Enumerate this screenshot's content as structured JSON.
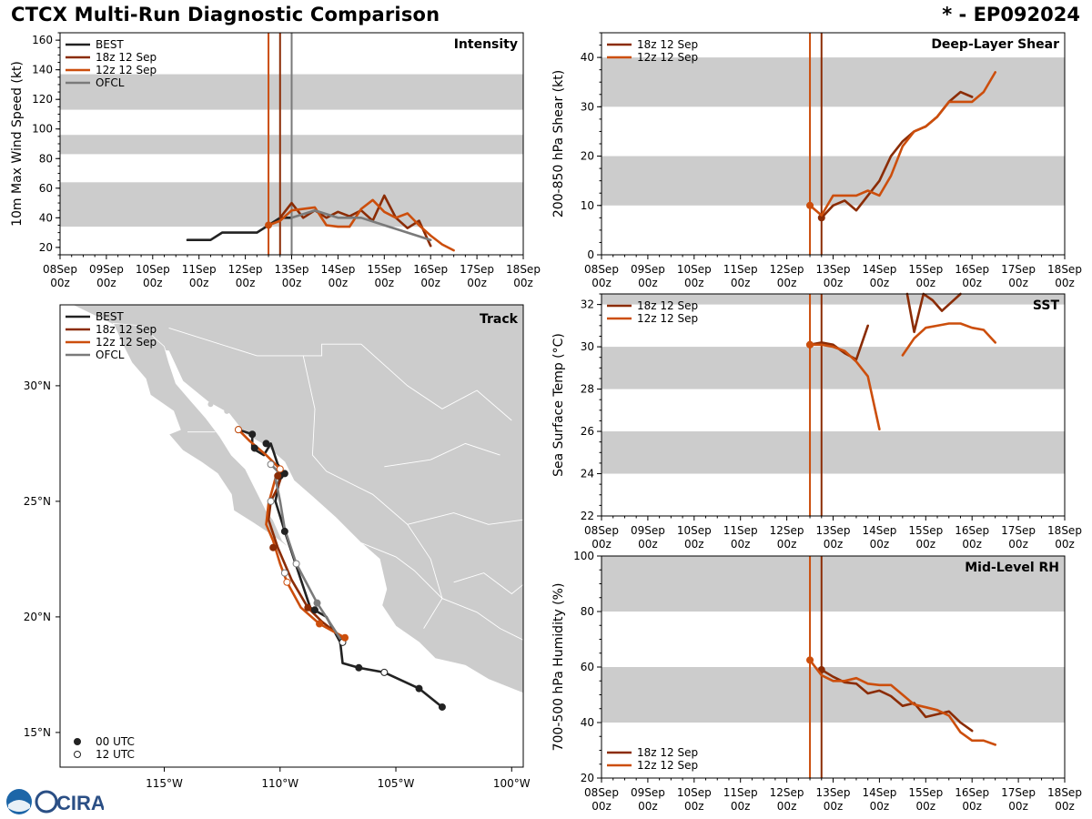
{
  "header": {
    "title_left": "CTCX Multi-Run Diagnostic Comparison",
    "title_right": "* - EP092024"
  },
  "logos": {
    "cira": "CIRA"
  },
  "colors": {
    "best": "#222222",
    "run18": "#8b2c05",
    "run12": "#cc4e0c",
    "ofcl": "#7a7a7a",
    "band": "#cccccc"
  },
  "time_axis": {
    "top": [
      "08Sep",
      "09Sep",
      "10Sep",
      "11Sep",
      "12Sep",
      "13Sep",
      "14Sep",
      "15Sep",
      "16Sep",
      "17Sep",
      "18Sep"
    ],
    "bottom": "00z"
  },
  "chart_data": [
    {
      "id": "intensity",
      "type": "line",
      "title": "Intensity",
      "ylabel": "10m Max Wind Speed (kt)",
      "xlim": [
        0,
        10
      ],
      "ylim": [
        15,
        165
      ],
      "yticks": [
        20,
        40,
        60,
        80,
        100,
        120,
        140,
        160
      ],
      "bands": [
        [
          34,
          64
        ],
        [
          83,
          96
        ],
        [
          113,
          137
        ]
      ],
      "vlines": [
        {
          "x": 4.5,
          "series": "run12"
        },
        {
          "x": 4.75,
          "series": "run18"
        },
        {
          "x": 5.0,
          "series": "ofcl"
        }
      ],
      "legend": [
        "BEST",
        "18z 12 Sep",
        "12z 12 Sep",
        "OFCL"
      ],
      "series": [
        {
          "key": "best",
          "name": "BEST",
          "x": [
            2.75,
            3.0,
            3.25,
            3.5,
            3.75,
            4.0,
            4.25,
            4.5,
            4.75,
            5.0
          ],
          "y": [
            25,
            25,
            25,
            30,
            30,
            30,
            30,
            35,
            40,
            40
          ]
        },
        {
          "key": "run18",
          "name": "18z 12 Sep",
          "x": [
            4.75,
            5.0,
            5.25,
            5.5,
            5.75,
            6.0,
            6.25,
            6.5,
            6.75,
            7.0,
            7.25,
            7.5,
            7.75,
            8.0
          ],
          "y": [
            40,
            50,
            40,
            45,
            40,
            44,
            41,
            45,
            38,
            55,
            40,
            33,
            38,
            21
          ]
        },
        {
          "key": "run12",
          "name": "12z 12 Sep",
          "x": [
            4.5,
            4.75,
            5.0,
            5.25,
            5.5,
            5.75,
            6.0,
            6.25,
            6.5,
            6.75,
            7.0,
            7.25,
            7.5,
            7.75,
            8.0,
            8.25,
            8.5
          ],
          "y": [
            35,
            38,
            45,
            46,
            47,
            35,
            34,
            34,
            46,
            52,
            44,
            40,
            43,
            35,
            28,
            22,
            18
          ]
        },
        {
          "key": "ofcl",
          "name": "OFCL",
          "x": [
            5.0,
            5.5,
            6.0,
            6.5,
            7.0,
            7.5,
            8.0
          ],
          "y": [
            40,
            45,
            40,
            40,
            35,
            30,
            25
          ]
        }
      ]
    },
    {
      "id": "shear",
      "type": "line",
      "title": "Deep-Layer Shear",
      "ylabel": "200-850 hPa Shear (kt)",
      "xlim": [
        0,
        10
      ],
      "ylim": [
        0,
        45
      ],
      "yticks": [
        0,
        10,
        20,
        30,
        40
      ],
      "bands": [
        [
          10,
          20
        ],
        [
          30,
          40
        ]
      ],
      "vlines": [
        {
          "x": 4.5,
          "series": "run12"
        },
        {
          "x": 4.75,
          "series": "run18"
        }
      ],
      "legend": [
        "18z 12 Sep",
        "12z 12 Sep"
      ],
      "series": [
        {
          "key": "run18",
          "name": "18z 12 Sep",
          "x": [
            4.75,
            5.0,
            5.25,
            5.5,
            5.75,
            6.0,
            6.25,
            6.5,
            6.75,
            7.0,
            7.25,
            7.5,
            7.75,
            8.0
          ],
          "y": [
            7.5,
            10,
            11,
            9,
            12,
            15,
            20,
            23,
            25,
            26,
            28,
            31,
            33,
            32
          ]
        },
        {
          "key": "run12",
          "name": "12z 12 Sep",
          "x": [
            4.5,
            4.75,
            5.0,
            5.25,
            5.5,
            5.75,
            6.0,
            6.25,
            6.5,
            6.75,
            7.0,
            7.25,
            7.5,
            7.75,
            8.0,
            8.25,
            8.5
          ],
          "y": [
            10,
            8,
            12,
            12,
            12,
            13,
            12,
            16,
            22,
            25,
            26,
            28,
            31,
            31,
            31,
            33,
            37
          ]
        }
      ]
    },
    {
      "id": "sst",
      "type": "line",
      "title": "SST",
      "ylabel": "Sea Surface Temp (°C)",
      "xlim": [
        0,
        10
      ],
      "ylim": [
        22,
        32.5
      ],
      "yticks": [
        22,
        24,
        26,
        28,
        30,
        32
      ],
      "bands": [
        [
          24,
          26
        ],
        [
          28,
          30
        ],
        [
          32,
          32.5
        ]
      ],
      "vlines": [
        {
          "x": 4.5,
          "series": "run12"
        },
        {
          "x": 4.75,
          "series": "run18"
        }
      ],
      "legend": [
        "18z 12 Sep",
        "12z 12 Sep"
      ],
      "series": [
        {
          "key": "run18",
          "name": "18z 12 Sep",
          "segments": [
            {
              "x": [
                4.5,
                4.75,
                5.0,
                5.25,
                5.5,
                5.75
              ],
              "y": [
                30.1,
                30.2,
                30.1,
                29.7,
                29.4,
                31.0
              ]
            },
            {
              "x": [
                6.6,
                6.75,
                6.95,
                7.15,
                7.35,
                7.55,
                7.75
              ],
              "y": [
                32.5,
                30.7,
                32.5,
                32.2,
                31.7,
                32.1,
                32.5
              ]
            }
          ]
        },
        {
          "key": "run12",
          "name": "12z 12 Sep",
          "segments": [
            {
              "x": [
                4.5,
                4.75,
                5.0,
                5.25,
                5.5,
                5.75,
                6.0
              ],
              "y": [
                30.1,
                30.1,
                30.0,
                29.8,
                29.3,
                28.6,
                26.1
              ]
            },
            {
              "x": [
                6.5,
                6.75,
                7.0,
                7.25,
                7.5,
                7.75,
                8.0,
                8.25,
                8.5
              ],
              "y": [
                29.6,
                30.4,
                30.9,
                31.0,
                31.1,
                31.1,
                30.9,
                30.8,
                30.2
              ]
            }
          ]
        }
      ]
    },
    {
      "id": "rh",
      "type": "line",
      "title": "Mid-Level RH",
      "ylabel": "700-500 hPa Humidity (%)",
      "xlim": [
        0,
        10
      ],
      "ylim": [
        20,
        100
      ],
      "yticks": [
        20,
        40,
        60,
        80,
        100
      ],
      "bands": [
        [
          40,
          60
        ],
        [
          80,
          100
        ]
      ],
      "vlines": [
        {
          "x": 4.5,
          "series": "run12"
        },
        {
          "x": 4.75,
          "series": "run18"
        }
      ],
      "legend": [
        "18z 12 Sep",
        "12z 12 Sep"
      ],
      "series": [
        {
          "key": "run18",
          "name": "18z 12 Sep",
          "x": [
            4.75,
            5.0,
            5.25,
            5.5,
            5.75,
            6.0,
            6.25,
            6.5,
            6.75,
            7.0,
            7.25,
            7.5,
            7.75,
            8.0
          ],
          "y": [
            59,
            56.5,
            54.5,
            54,
            50.5,
            51.5,
            49.5,
            46,
            47,
            42,
            43,
            44,
            40,
            37
          ]
        },
        {
          "key": "run12",
          "name": "12z 12 Sep",
          "x": [
            4.5,
            4.75,
            5.0,
            5.25,
            5.5,
            5.75,
            6.0,
            6.25,
            6.5,
            6.75,
            7.0,
            7.25,
            7.5,
            7.75,
            8.0,
            8.25,
            8.5
          ],
          "y": [
            62.5,
            57,
            55,
            55,
            56,
            54,
            53.5,
            53.5,
            50,
            46.5,
            45.5,
            44.5,
            42.5,
            36.5,
            33.5,
            33.5,
            32
          ]
        }
      ]
    },
    {
      "id": "track",
      "type": "scatter",
      "title": "Track",
      "xlim": [
        -119.5,
        -99.5
      ],
      "ylim": [
        13.5,
        33.5
      ],
      "xticks": [
        -115,
        -110,
        -105,
        -100
      ],
      "xtick_labels": [
        "115°W",
        "110°W",
        "105°W",
        "100°W"
      ],
      "yticks": [
        15,
        20,
        25,
        30
      ],
      "ytick_labels": [
        "15°N",
        "20°N",
        "25°N",
        "30°N"
      ],
      "legend": [
        "BEST",
        "18z 12 Sep",
        "12z 12 Sep",
        "OFCL"
      ],
      "marker_legend": [
        "00 UTC",
        "12 UTC"
      ],
      "series": [
        {
          "key": "best",
          "name": "BEST",
          "lon": [
            -103.0,
            -104.0,
            -105.5,
            -106.6,
            -107.3,
            -107.4,
            -108.0,
            -108.7,
            -109.8,
            -110.2,
            -110.0,
            -109.8,
            -110.1,
            -110.4,
            -110.7,
            -111.2,
            -111.2,
            -111.8
          ],
          "lat": [
            16.1,
            16.9,
            17.6,
            17.8,
            18.0,
            18.9,
            20.0,
            20.4,
            23.7,
            25.0,
            26.1,
            26.2,
            26.6,
            27.5,
            27.0,
            27.3,
            27.9,
            28.1
          ],
          "points": [
            {
              "lon": -103.0,
              "lat": 16.1,
              "utc": "00"
            },
            {
              "lon": -104.0,
              "lat": 16.9,
              "utc": "00"
            },
            {
              "lon": -105.5,
              "lat": 17.6,
              "utc": "12"
            },
            {
              "lon": -106.6,
              "lat": 17.8,
              "utc": "00"
            },
            {
              "lon": -107.3,
              "lat": 18.9,
              "utc": "12"
            },
            {
              "lon": -108.5,
              "lat": 20.3,
              "utc": "00"
            },
            {
              "lon": -109.8,
              "lat": 23.7,
              "utc": "00"
            },
            {
              "lon": -110.0,
              "lat": 26.1,
              "utc": "00"
            },
            {
              "lon": -109.8,
              "lat": 26.2,
              "utc": "00"
            },
            {
              "lon": -110.6,
              "lat": 27.5,
              "utc": "00"
            },
            {
              "lon": -111.1,
              "lat": 27.3,
              "utc": "00"
            },
            {
              "lon": -111.2,
              "lat": 27.9,
              "utc": "00"
            },
            {
              "lon": -111.8,
              "lat": 28.1,
              "utc": "12"
            }
          ]
        },
        {
          "key": "run18",
          "name": "18z 12 Sep",
          "lon": [
            -107.3,
            -108.2,
            -108.8,
            -109.5,
            -110.1,
            -110.5,
            -110.4,
            -110.1,
            -109.9,
            -110.1
          ],
          "lat": [
            19.1,
            19.8,
            20.4,
            21.6,
            23.0,
            24.2,
            25.0,
            25.6,
            26.2,
            26.5
          ],
          "points": [
            {
              "lon": -108.8,
              "lat": 20.4,
              "utc": "00"
            },
            {
              "lon": -110.3,
              "lat": 23.0,
              "utc": "00"
            },
            {
              "lon": -110.1,
              "lat": 26.1,
              "utc": "00"
            }
          ]
        },
        {
          "key": "run12",
          "name": "12z 12 Sep",
          "lon": [
            -107.2,
            -108.3,
            -109.1,
            -109.7,
            -110.0,
            -110.3,
            -110.6,
            -110.5,
            -110.2,
            -110.0,
            -110.6,
            -111.3,
            -111.8
          ],
          "lat": [
            19.1,
            19.7,
            20.4,
            21.5,
            22.3,
            23.3,
            24.0,
            24.9,
            26.0,
            26.4,
            27.0,
            27.6,
            28.1
          ],
          "points": [
            {
              "lon": -107.2,
              "lat": 19.1,
              "utc": "00"
            },
            {
              "lon": -108.3,
              "lat": 19.7,
              "utc": "00"
            },
            {
              "lon": -109.7,
              "lat": 21.5,
              "utc": "12"
            },
            {
              "lon": -110.0,
              "lat": 26.4,
              "utc": "12"
            },
            {
              "lon": -111.8,
              "lat": 28.1,
              "utc": "12"
            }
          ]
        },
        {
          "key": "ofcl",
          "name": "OFCL",
          "lon": [
            -107.3,
            -108.4,
            -109.3,
            -109.8,
            -110.0,
            -110.2,
            -110.1,
            -110.4
          ],
          "lat": [
            18.9,
            20.6,
            22.3,
            23.8,
            25.0,
            26.0,
            26.3,
            26.6
          ],
          "points": [
            {
              "lon": -108.4,
              "lat": 20.6,
              "utc": "00"
            },
            {
              "lon": -109.3,
              "lat": 22.3,
              "utc": "12"
            },
            {
              "lon": -109.8,
              "lat": 21.9,
              "utc": "12"
            },
            {
              "lon": -110.4,
              "lat": 25.0,
              "utc": "12"
            },
            {
              "lon": -110.4,
              "lat": 26.6,
              "utc": "12"
            }
          ]
        }
      ]
    }
  ]
}
